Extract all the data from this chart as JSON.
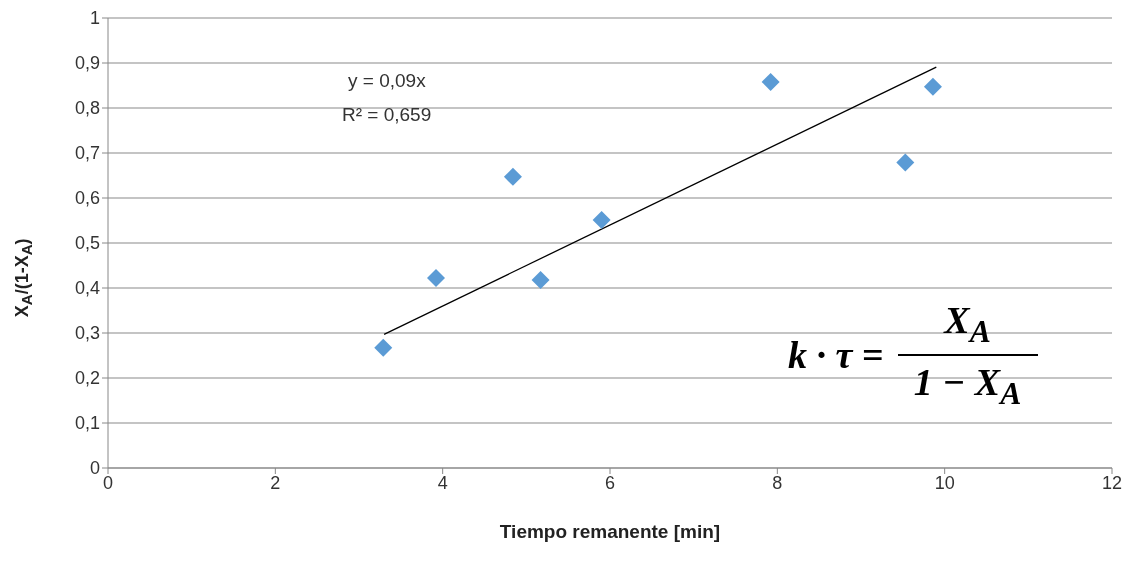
{
  "chart_data": {
    "type": "scatter",
    "xlabel": "Tiempo remanente [min]",
    "ylabel": "X$_{A}$/(1-X$_{A}$)",
    "annotations": [
      "y = 0,09x",
      "R² = 0,659",
      "k · τ =",
      "X$_{A}$",
      "1 − X$_{A}$"
    ],
    "series": [
      {
        "color": "#5b9bd5",
        "marker": "diamond",
        "x": [
          3.29,
          3.92,
          4.84,
          5.17,
          5.9,
          7.92,
          9.53,
          9.86
        ],
        "values": [
          0.267,
          0.422,
          0.647,
          0.418,
          0.551,
          0.858,
          0.679,
          0.847
        ]
      },
      {
        "type": "line",
        "color": "#000000",
        "marker": "none",
        "x": [
          3.3,
          9.9
        ],
        "values": [
          0.297,
          0.891
        ]
      }
    ],
    "xlim": [
      0,
      12
    ],
    "xticks": [
      0,
      2,
      4,
      6,
      8,
      10,
      12
    ],
    "ylim": [
      0,
      1
    ],
    "yticks": [
      0,
      {
        "value": 0.1,
        "label": "0,1"
      },
      {
        "value": 0.2,
        "label": "0,2"
      },
      {
        "value": 0.3,
        "label": "0,3"
      },
      {
        "value": 0.4,
        "label": "0,4"
      },
      {
        "value": 0.5,
        "label": "0,5"
      },
      {
        "value": 0.6,
        "label": "0,6"
      },
      {
        "value": 0.7,
        "label": "0,7"
      },
      {
        "value": 0.8,
        "label": "0,8"
      },
      {
        "value": 0.9,
        "label": "0,9"
      },
      1
    ],
    "grid": "y"
  }
}
